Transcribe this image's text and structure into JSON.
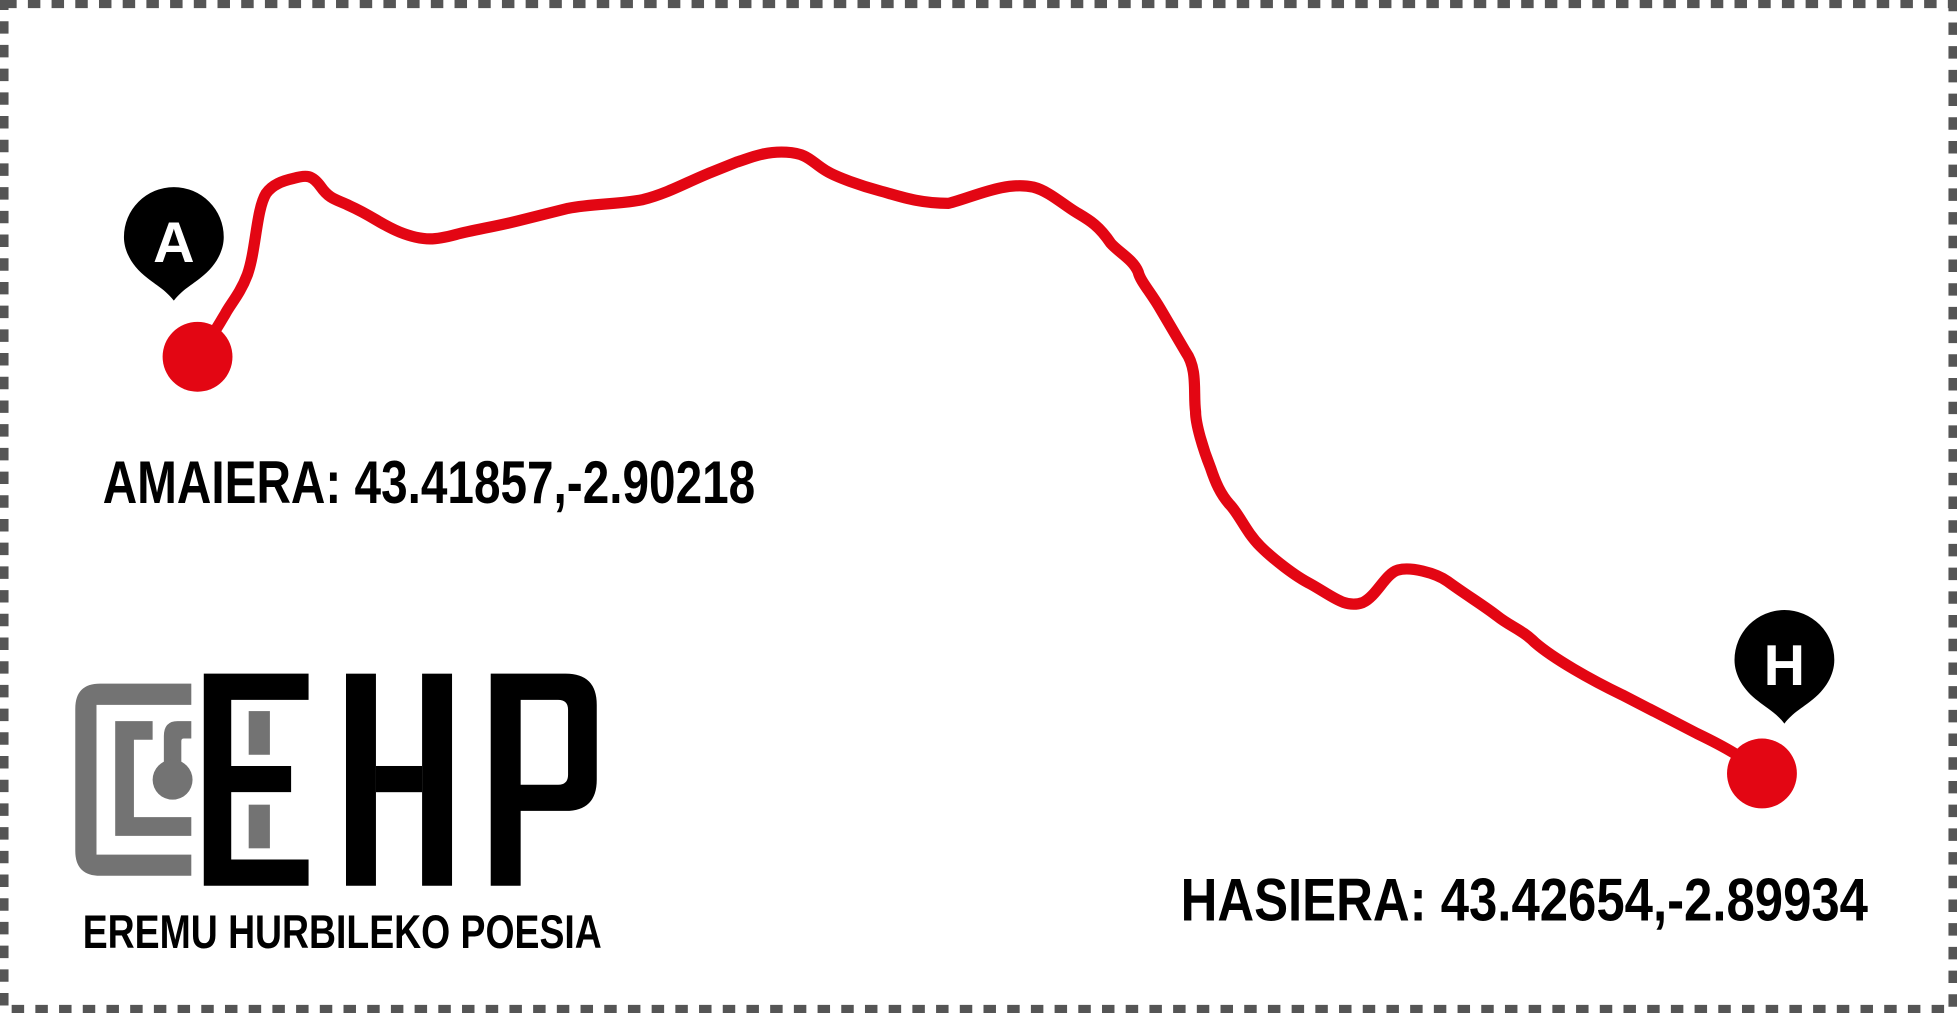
{
  "route": {
    "end_label": "AMAIERA: 43.41857,-2.90218",
    "start_label": "HASIERA: 43.42654,-2.89934",
    "end_marker": "A",
    "start_marker": "H",
    "route_color": "#e30613",
    "pin_color": "#000000"
  },
  "logo": {
    "letters": [
      "E",
      "H",
      "P"
    ],
    "tagline": "EREMU HURBILEKO POESIA",
    "icon": "keyhole-bracket-icon",
    "gray": "#737373"
  },
  "border": {
    "style": "dashed",
    "color": "#555555"
  }
}
